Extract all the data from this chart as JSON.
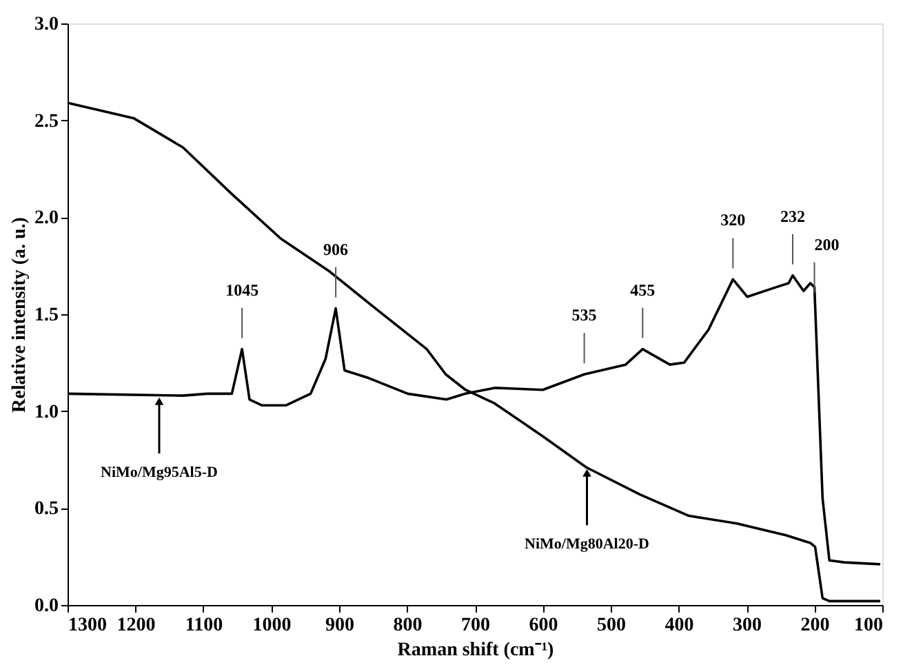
{
  "chart_data": {
    "type": "line",
    "xlabel": "Raman shift (cm⁻¹)",
    "ylabel": "Relative intensity (a. u.)",
    "xlim": [
      1300,
      100
    ],
    "xticks": [
      1300,
      1200,
      1100,
      1000,
      900,
      800,
      700,
      600,
      500,
      400,
      300,
      200,
      100
    ],
    "ylim": [
      0,
      3
    ],
    "yticks": [
      {
        "value": 0,
        "label": "0.0"
      },
      0.5,
      {
        "value": 1,
        "label": "1.0"
      },
      1.5,
      {
        "value": 2,
        "label": "2.0"
      },
      2.5,
      {
        "value": 3,
        "label": "3.0"
      }
    ],
    "grid": false,
    "line_style": "solid",
    "series": [
      {
        "color": "#000000",
        "x": [
          1300,
          1202,
          1130,
          1058,
          986,
          914,
          843,
          771,
          743,
          714,
          671,
          600,
          536,
          457,
          385,
          314,
          242,
          206,
          199,
          188,
          178,
          103
        ],
        "values": [
          2.59,
          2.51,
          2.36,
          2.12,
          1.89,
          1.72,
          1.52,
          1.32,
          1.19,
          1.11,
          1.04,
          0.87,
          0.71,
          0.57,
          0.46,
          0.42,
          0.36,
          0.32,
          0.3,
          0.035,
          0.02,
          0.02
        ]
      },
      {
        "color": "#000000",
        "x": [
          1300,
          1130,
          1094,
          1058,
          1043,
          1032,
          1014,
          978,
          942,
          920,
          905,
          892,
          856,
          799,
          742,
          714,
          671,
          600,
          539,
          478,
          453,
          413,
          392,
          356,
          320,
          299,
          256,
          238,
          232,
          216,
          206,
          200,
          188,
          178,
          156,
          103
        ],
        "values": [
          1.09,
          1.08,
          1.09,
          1.09,
          1.32,
          1.06,
          1.03,
          1.03,
          1.09,
          1.27,
          1.53,
          1.21,
          1.17,
          1.09,
          1.06,
          1.09,
          1.12,
          1.11,
          1.19,
          1.24,
          1.32,
          1.24,
          1.25,
          1.42,
          1.68,
          1.59,
          1.64,
          1.66,
          1.7,
          1.62,
          1.66,
          1.64,
          0.55,
          0.23,
          0.22,
          0.21
        ]
      }
    ],
    "annotations": [
      {
        "text": "1045",
        "x": 1043,
        "y": 1.32
      },
      {
        "text": "906",
        "x": 905,
        "y": 1.53
      },
      {
        "text": "535",
        "x": 539,
        "y": 1.19
      },
      {
        "text": "455",
        "x": 453,
        "y": 1.32
      },
      {
        "text": "320",
        "x": 320,
        "y": 1.68
      },
      {
        "text": "232",
        "x": 232,
        "y": 1.7
      },
      {
        "text": "200",
        "x": 200,
        "y": 1.64
      },
      {
        "text": "NiMo/Mg95Al5-D",
        "x": 1165,
        "y": 1.08
      },
      {
        "text": "NiMo/Mg80Al20-D",
        "x": 535,
        "y": 0.71
      }
    ]
  }
}
